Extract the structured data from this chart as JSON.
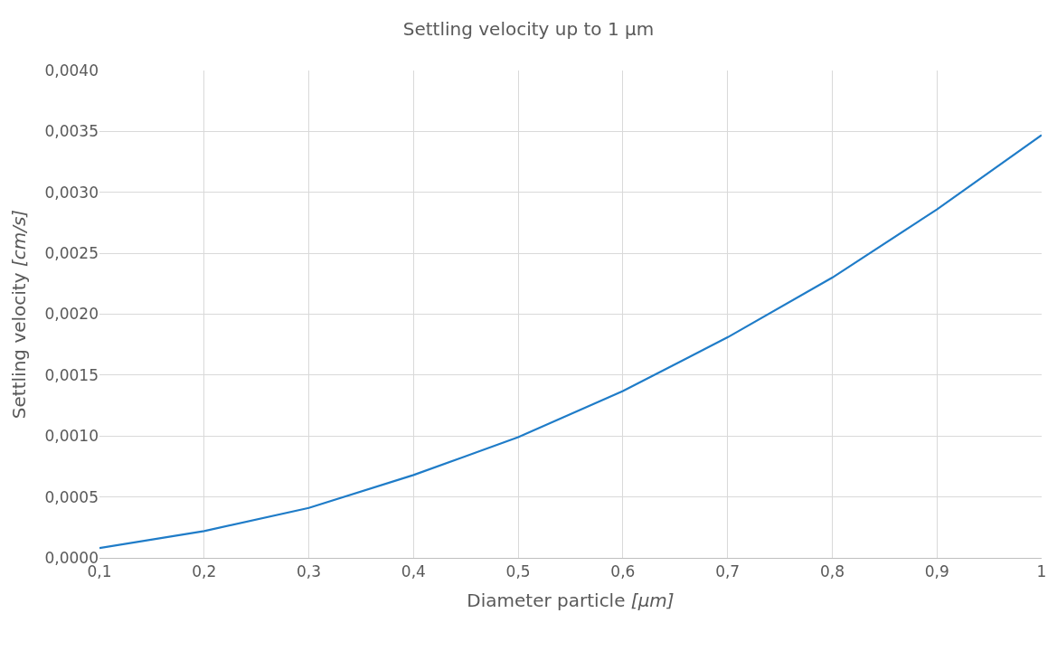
{
  "chart_data": {
    "type": "line",
    "title": "Settling velocity up to 1 µm",
    "xlabel": "Diameter particle [µm]",
    "ylabel": "Settling velocity [cm/s]",
    "x": [
      0.1,
      0.2,
      0.3,
      0.4,
      0.5,
      0.6,
      0.7,
      0.8,
      0.9,
      1.0
    ],
    "series": [
      {
        "color": "#1f7cc8",
        "values": [
          8e-05,
          0.00022,
          0.00041,
          0.00068,
          0.00099,
          0.00137,
          0.00181,
          0.0023,
          0.00286,
          0.00347
        ]
      }
    ],
    "xlim": [
      0.1,
      1.0
    ],
    "xticks": [
      {
        "value": 0.1,
        "label": "0,1"
      },
      {
        "value": 0.2,
        "label": "0,2"
      },
      {
        "value": 0.3,
        "label": "0,3"
      },
      {
        "value": 0.4,
        "label": "0,4"
      },
      {
        "value": 0.5,
        "label": "0,5"
      },
      {
        "value": 0.6,
        "label": "0,6"
      },
      {
        "value": 0.7,
        "label": "0,7"
      },
      {
        "value": 0.8,
        "label": "0,8"
      },
      {
        "value": 0.9,
        "label": "0,9"
      },
      1
    ],
    "ylim": [
      0,
      0.004
    ],
    "yticks": [
      {
        "value": 0,
        "label": "0,0000"
      },
      {
        "value": 0.0005,
        "label": "0,0005"
      },
      {
        "value": 0.001,
        "label": "0,0010"
      },
      {
        "value": 0.0015,
        "label": "0,0015"
      },
      {
        "value": 0.002,
        "label": "0,0020"
      },
      {
        "value": 0.0025,
        "label": "0,0025"
      },
      {
        "value": 0.003,
        "label": "0,0030"
      },
      {
        "value": 0.0035,
        "label": "0,0035"
      },
      {
        "value": 0.004,
        "label": "0,0040"
      }
    ],
    "grid": true,
    "line_style": "solid"
  }
}
